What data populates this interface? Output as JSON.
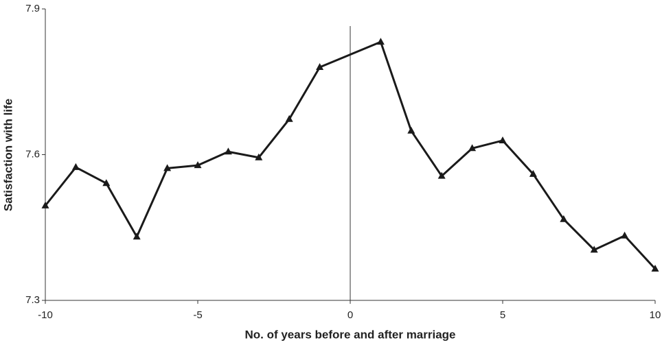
{
  "chart_data": {
    "type": "line",
    "xlabel": "No. of years before and after marriage",
    "ylabel": "Satisfaction with life",
    "x": [
      -10,
      -9,
      -8,
      -7,
      -6,
      -5,
      -4,
      -3,
      -2,
      -1,
      1,
      2,
      3,
      4,
      5,
      6,
      7,
      8,
      9,
      10
    ],
    "series": [
      {
        "color": "#1a1a1a",
        "values": [
          7.495,
          7.574,
          7.541,
          7.431,
          7.572,
          7.578,
          7.606,
          7.594,
          7.673,
          7.78,
          7.832,
          7.649,
          7.556,
          7.613,
          7.629,
          7.56,
          7.467,
          7.404,
          7.433,
          7.365
        ]
      }
    ],
    "xlim": [
      -10,
      10
    ],
    "xticks": [
      -10,
      -5,
      0,
      5,
      10
    ],
    "ylim": [
      7.3,
      7.9
    ],
    "yticks": [
      7.3,
      7.6,
      7.9
    ],
    "vline": 0,
    "marker": "triangle",
    "grid": false
  }
}
